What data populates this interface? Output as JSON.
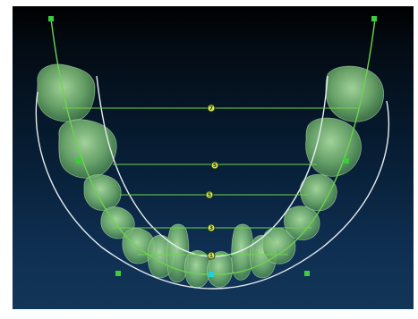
{
  "window": {
    "title": ""
  },
  "viewport": {
    "background_top": "#000000",
    "background_bottom": "#123658"
  },
  "colors": {
    "teeth_fill": "#7fc47a",
    "teeth_stroke": "#a6df9c",
    "guide_line": "#6ed24f",
    "arch_outline": "#e6eef2",
    "handle": "#3dcc3d",
    "handle_selected": "#19d3e6",
    "measure_marker_fill": "#d8e85a"
  },
  "arch_curve": {
    "label": ""
  },
  "measurement_bars": [
    {
      "name": "molar-width-bar",
      "label": "7"
    },
    {
      "name": "premolar-2-width-bar",
      "label": "5"
    },
    {
      "name": "premolar-1-width-bar",
      "label": "5"
    },
    {
      "name": "canine-width-bar",
      "label": "3"
    },
    {
      "name": "incisor-width-bar",
      "label": "1"
    }
  ],
  "control_points": [
    {
      "name": "left-top-handle"
    },
    {
      "name": "right-top-handle"
    },
    {
      "name": "left-mid-handle"
    },
    {
      "name": "right-mid-handle"
    },
    {
      "name": "left-bottom-handle"
    },
    {
      "name": "right-bottom-handle"
    },
    {
      "name": "midline-handle",
      "selected": true
    }
  ]
}
